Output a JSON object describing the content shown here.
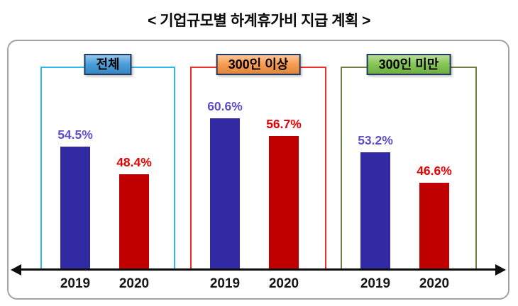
{
  "title": "< 기업규모별 하계휴가비 지급 계획 >",
  "chart_data": {
    "type": "bar",
    "title": "기업규모별 하계휴가비 지급 계획",
    "categories": [
      "2019",
      "2020"
    ],
    "value_suffix": "%",
    "grid": false,
    "legend_position": "none",
    "groups": [
      {
        "label": "전체",
        "values": [
          54.5,
          48.4
        ],
        "labels": [
          "54.5%",
          "48.4%"
        ],
        "box_border_color": "#2fb8ec",
        "label_bg_color": "#3e97d8"
      },
      {
        "label": "300인 이상",
        "values": [
          60.6,
          56.7
        ],
        "labels": [
          "60.6%",
          "56.7%"
        ],
        "box_border_color": "#ec2f27",
        "label_bg_color": "#f79646"
      },
      {
        "label": "300인 미만",
        "values": [
          53.2,
          46.6
        ],
        "labels": [
          "53.2%",
          "46.6%"
        ],
        "box_border_color": "#6f7f44",
        "label_bg_color": "#7dc24a"
      }
    ],
    "series": [
      {
        "name": "2019",
        "bar_color": "#312aa2",
        "value_color": "#5c50c8"
      },
      {
        "name": "2020",
        "bar_color": "#c00000",
        "value_color": "#e60000"
      }
    ]
  }
}
